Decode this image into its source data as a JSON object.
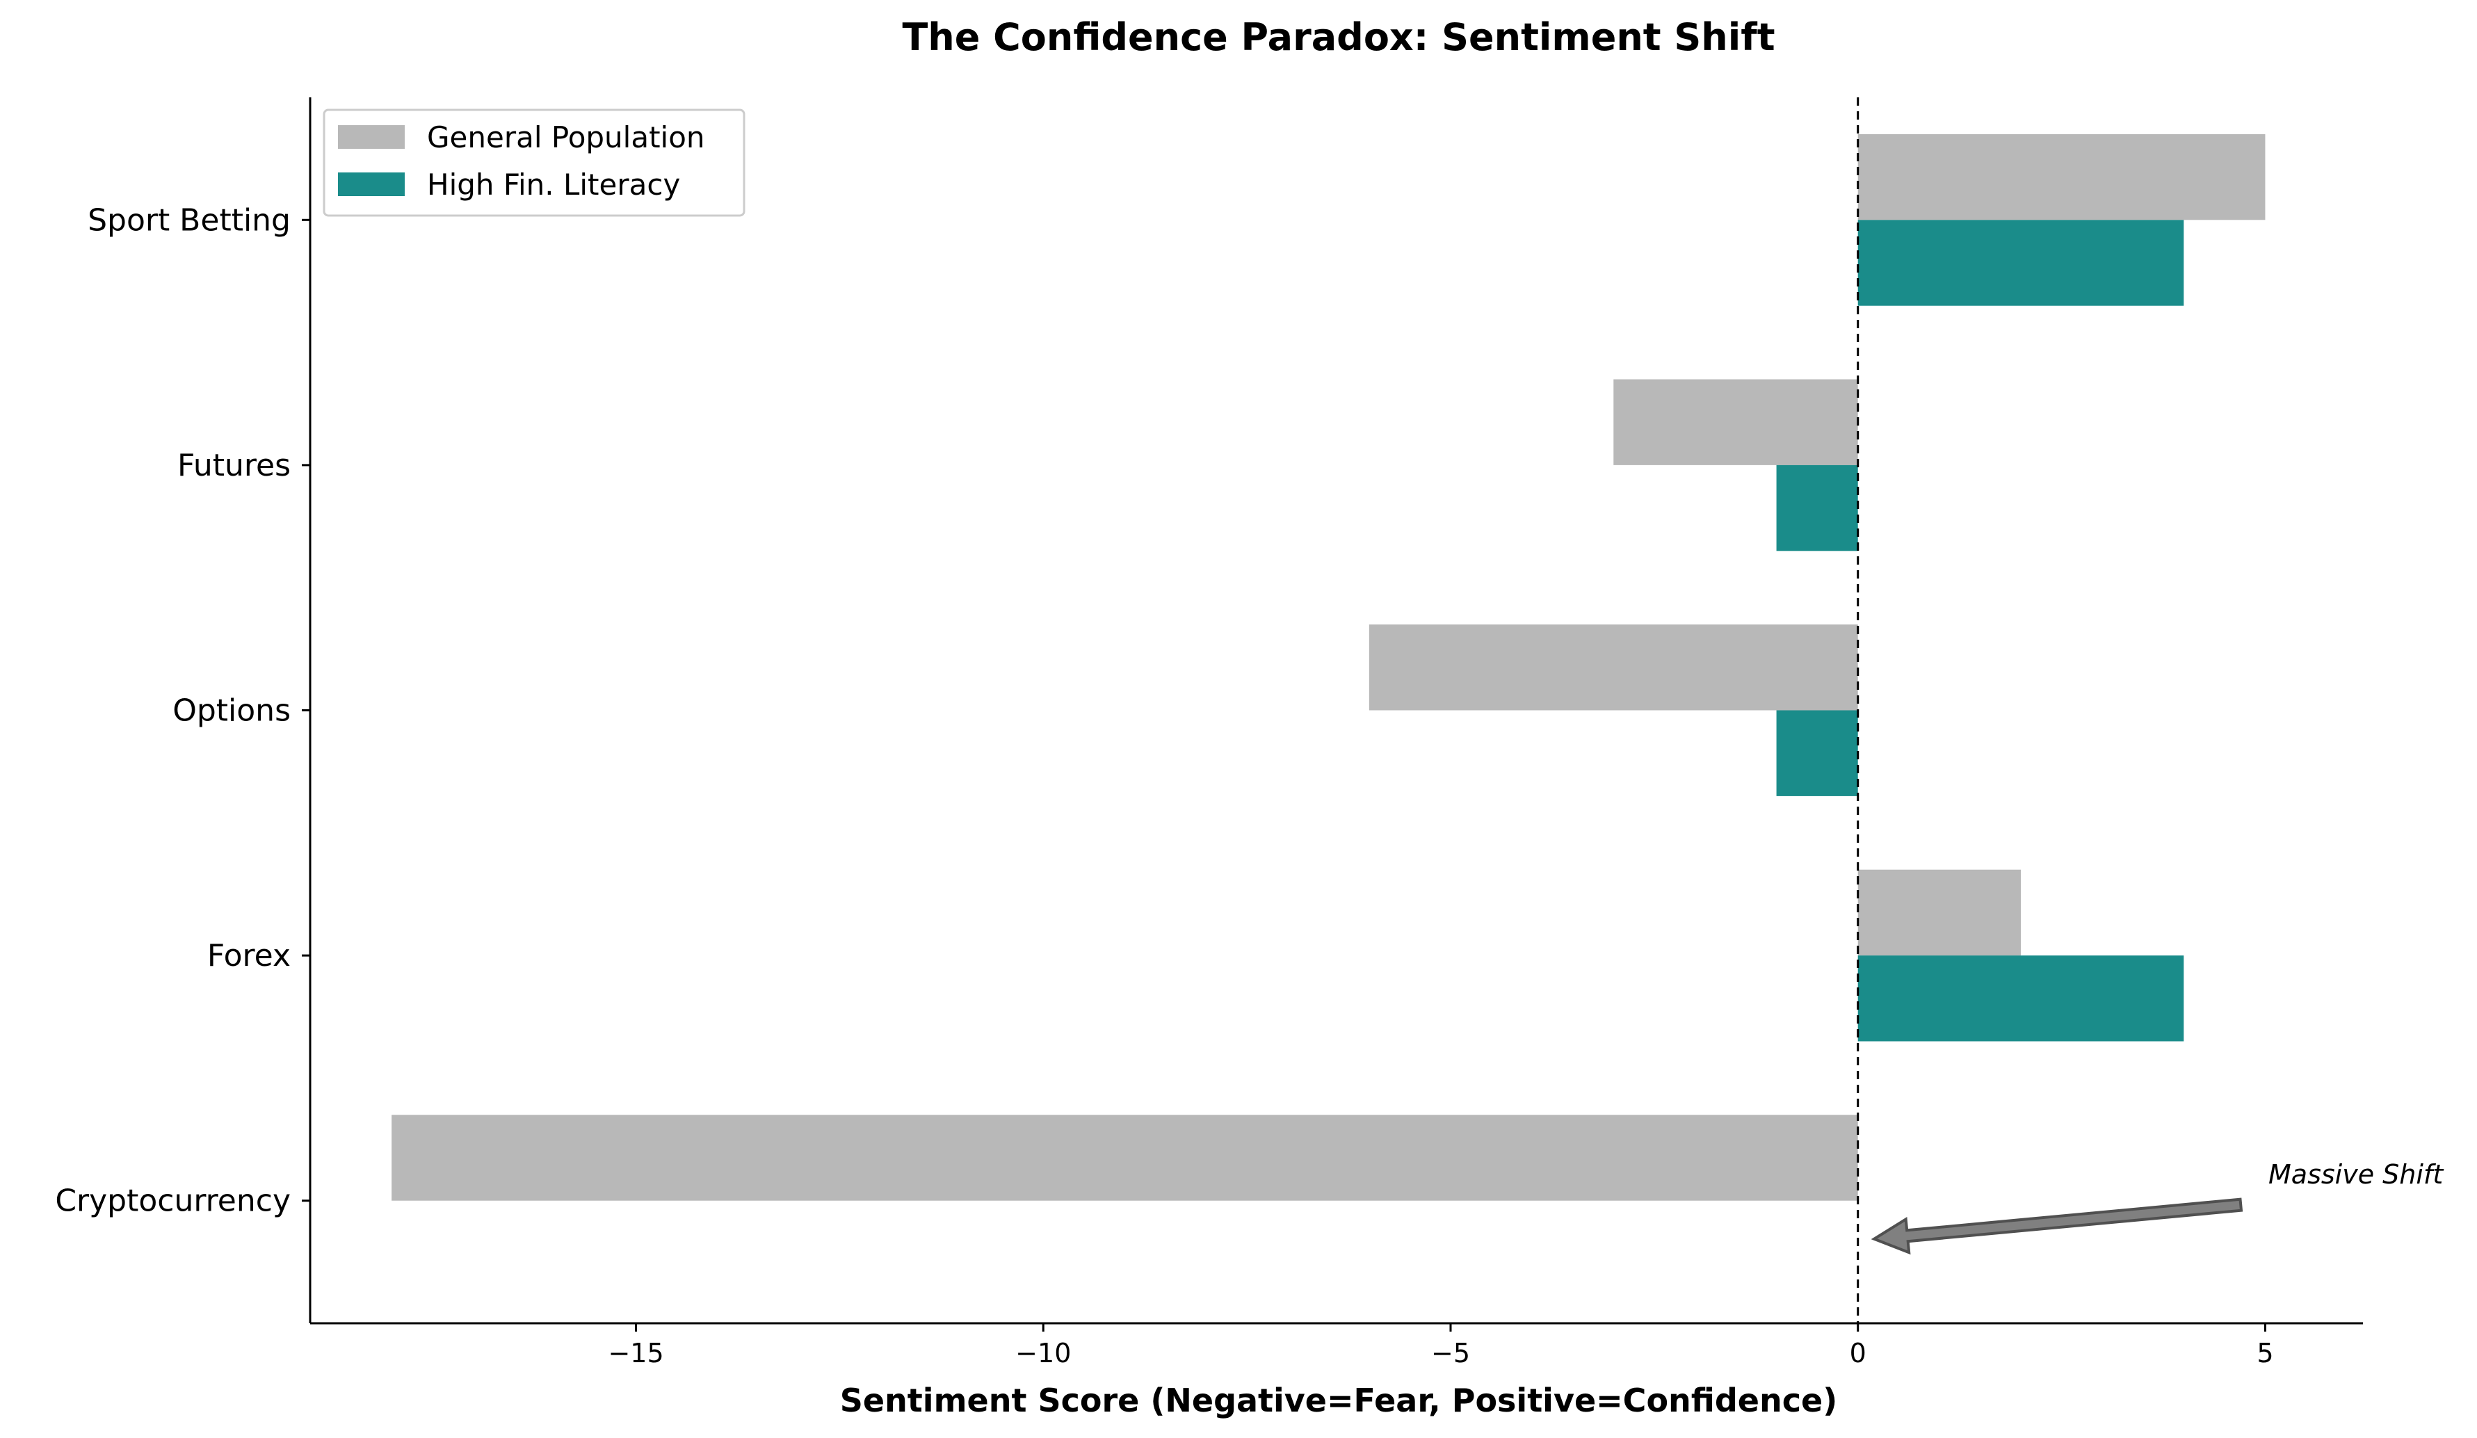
{
  "chart_data": {
    "type": "bar",
    "orientation": "horizontal",
    "title": "The Confidence Paradox: Sentiment Shift",
    "xlabel": "Sentiment Score (Negative=Fear, Positive=Confidence)",
    "ylabel": "",
    "categories": [
      "Cryptocurrency",
      "Forex",
      "Options",
      "Futures",
      "Sport Betting"
    ],
    "series": [
      {
        "name": "General Population",
        "values": [
          -18,
          2,
          -6,
          -3,
          5
        ],
        "color": "#b8b8b8"
      },
      {
        "name": "High Fin. Literacy",
        "values": [
          0,
          4,
          -1,
          -1,
          4
        ],
        "color": "#1a8c8a"
      }
    ],
    "xlim": [
      -19,
      6.2
    ],
    "xticks": [
      -15,
      -10,
      -5,
      0,
      5
    ],
    "xtick_labels": [
      "−15",
      "−10",
      "−5",
      "0",
      "5"
    ],
    "reference_line": {
      "x": 0,
      "style": "dashed"
    },
    "legend": {
      "position": "top-left"
    },
    "grid": false,
    "annotation": {
      "text": "Massive Shift",
      "category": "Cryptocurrency",
      "arrow_tip_x": 0.2
    }
  }
}
